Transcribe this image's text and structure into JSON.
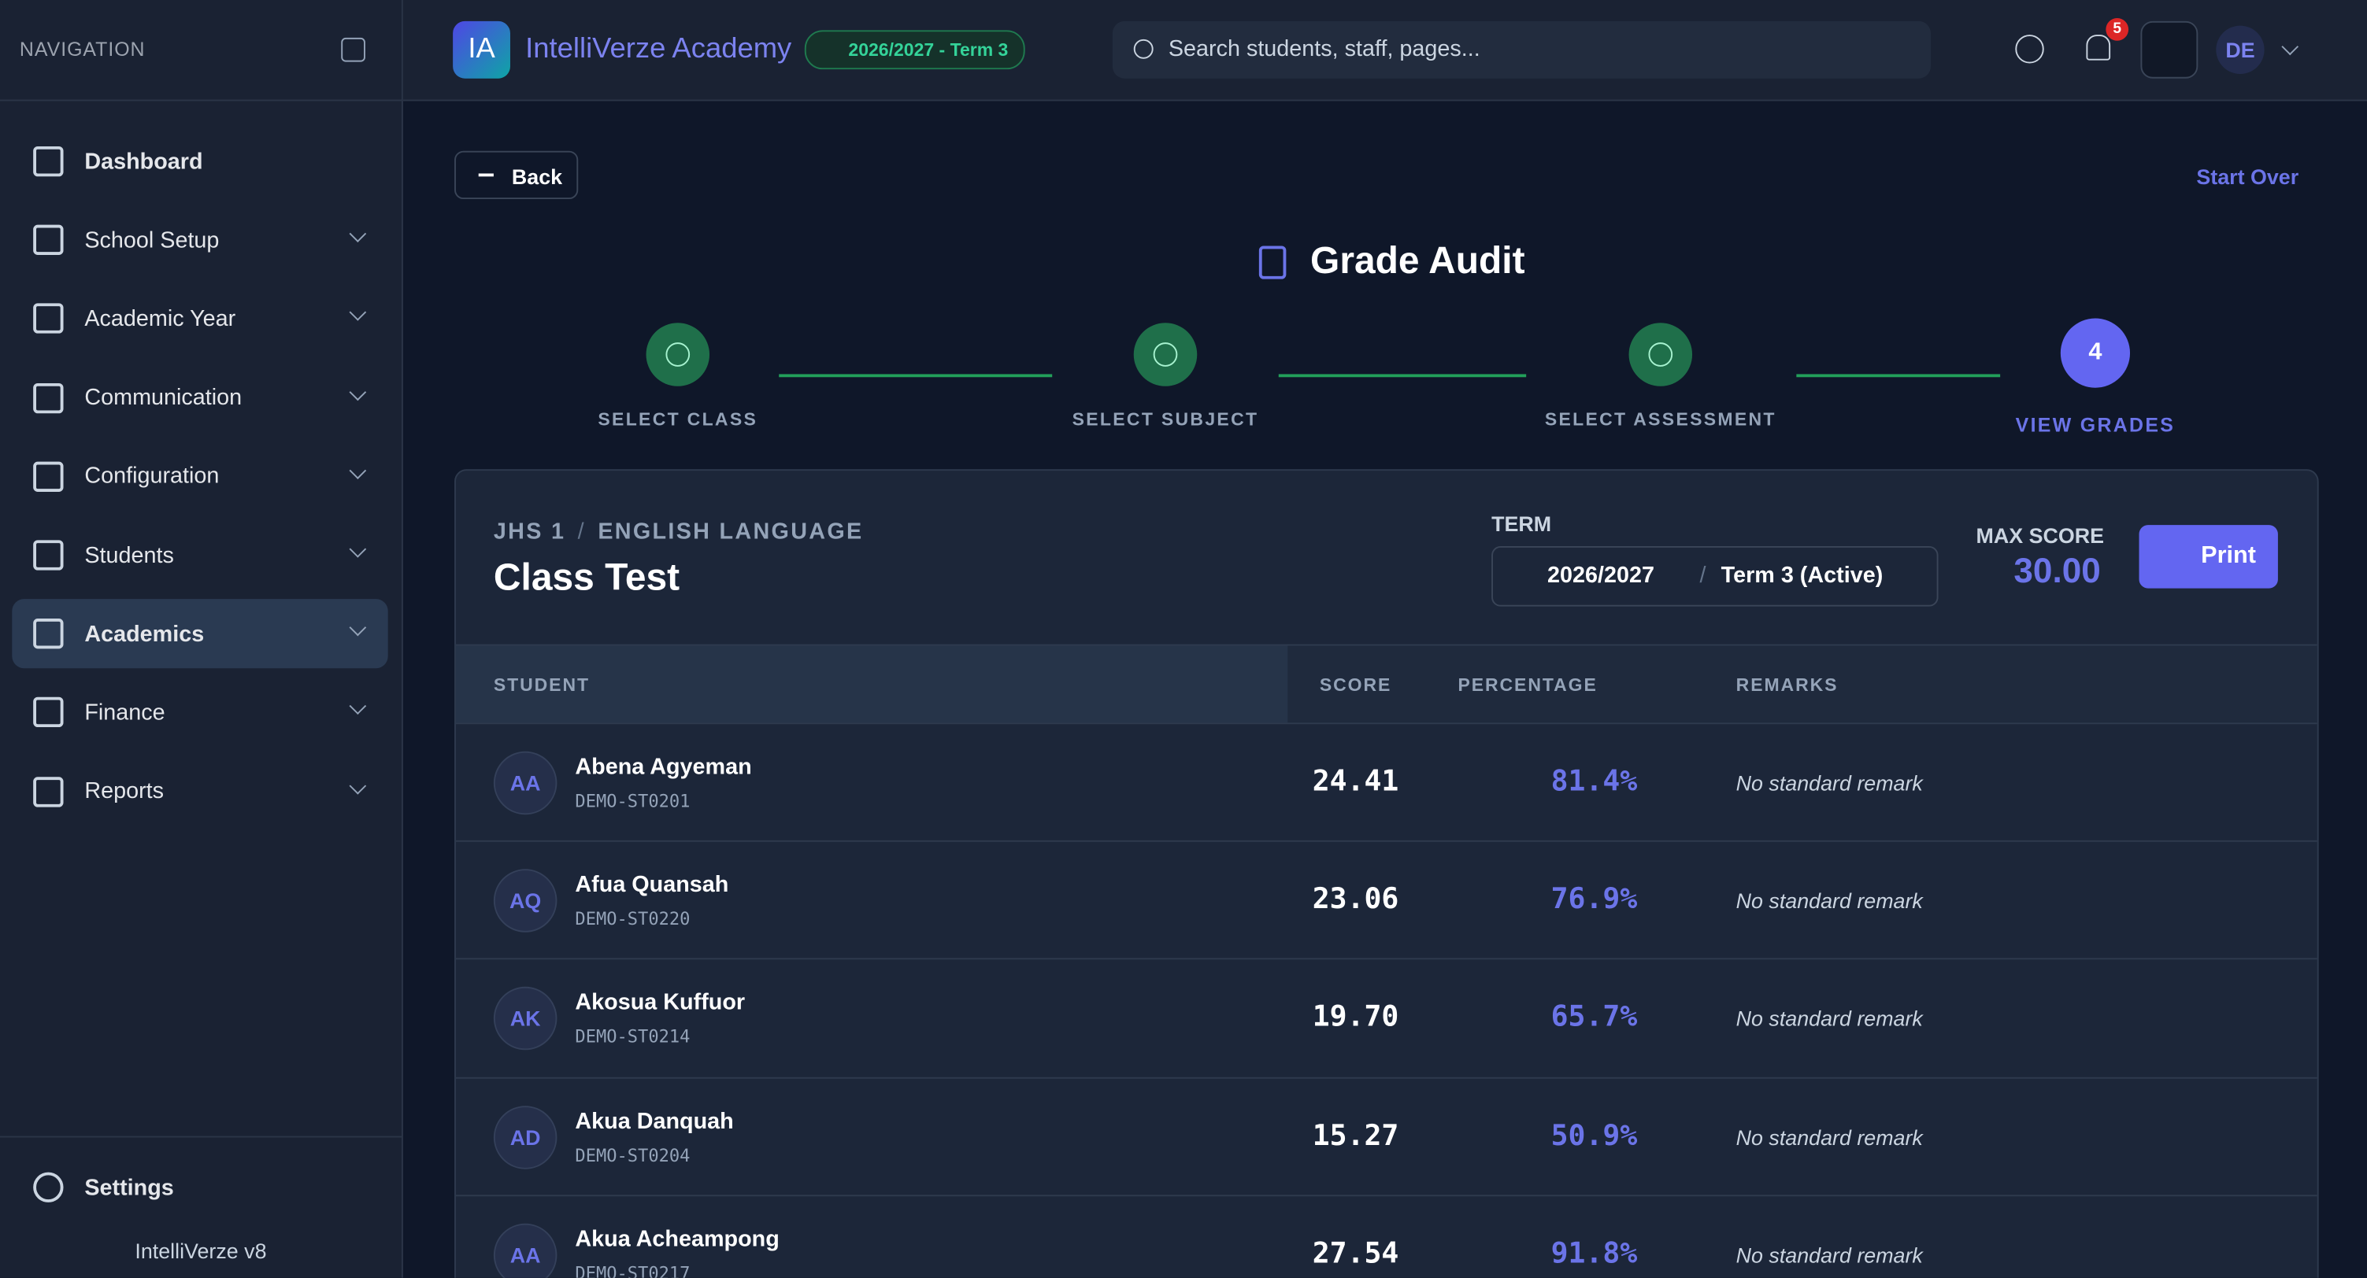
{
  "sidebar": {
    "heading": "NAVIGATION",
    "items": [
      "Dashboard",
      "School Setup",
      "Academic Year",
      "Communication",
      "Configuration",
      "Students",
      "Academics",
      "Finance",
      "Reports"
    ],
    "settings": "Settings",
    "version": "IntelliVerze v8"
  },
  "header": {
    "logo": "IA",
    "brand": "IntelliVerze Academy",
    "term_badge": "2026/2027 - Term 3",
    "search_placeholder": "Search students, staff, pages...",
    "notifications": "5",
    "avatar": "DE"
  },
  "page": {
    "back": "Back",
    "start_over": "Start Over",
    "title": "Grade Audit",
    "steps": [
      "SELECT CLASS",
      "SELECT SUBJECT",
      "SELECT ASSESSMENT",
      "VIEW GRADES"
    ],
    "current_step": "4"
  },
  "card": {
    "class": "JHS 1",
    "subject": "ENGLISH LANGUAGE",
    "assessment": "Class Test",
    "term_label": "TERM",
    "year": "2026/2027",
    "term": "Term 3 (Active)",
    "max_score_label": "MAX SCORE",
    "max_score": "30.00",
    "print": "Print"
  },
  "table": {
    "columns": [
      "STUDENT",
      "SCORE",
      "PERCENTAGE",
      "REMARKS"
    ],
    "rows": [
      {
        "initials": "AA",
        "name": "Abena Agyeman",
        "id": "DEMO-ST0201",
        "score": "24.41",
        "percentage": "81.4%",
        "remark": "No standard remark"
      },
      {
        "initials": "AQ",
        "name": "Afua Quansah",
        "id": "DEMO-ST0220",
        "score": "23.06",
        "percentage": "76.9%",
        "remark": "No standard remark"
      },
      {
        "initials": "AK",
        "name": "Akosua Kuffuor",
        "id": "DEMO-ST0214",
        "score": "19.70",
        "percentage": "65.7%",
        "remark": "No standard remark"
      },
      {
        "initials": "AD",
        "name": "Akua Danquah",
        "id": "DEMO-ST0204",
        "score": "15.27",
        "percentage": "50.9%",
        "remark": "No standard remark"
      },
      {
        "initials": "AA",
        "name": "Akua Acheampong",
        "id": "DEMO-ST0217",
        "score": "27.54",
        "percentage": "91.8%",
        "remark": "No standard remark"
      }
    ]
  }
}
